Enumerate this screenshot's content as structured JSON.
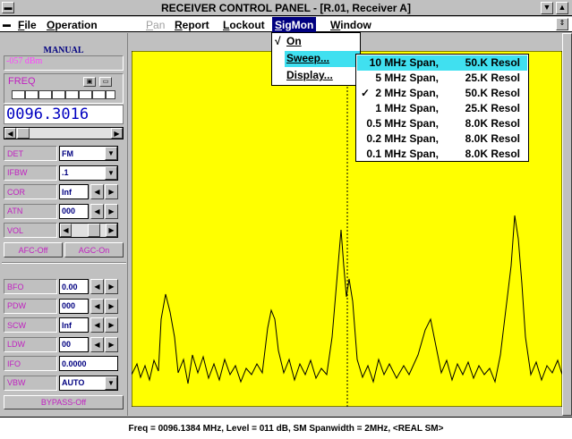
{
  "title_bar": {
    "title": "RECEIVER CONTROL PANEL - [R.01, Receiver A]"
  },
  "menu_bar": {
    "items": [
      "File",
      "Operation",
      "Pan",
      "Report",
      "Lockout",
      "SigMon",
      "Window"
    ]
  },
  "sigmon_menu": {
    "check": "√",
    "items": [
      "On",
      "Sweep...",
      "Display..."
    ]
  },
  "sweep_menu": {
    "check": "✓",
    "items": [
      {
        "span": "10 MHz Span,",
        "resol": "50.K Resol"
      },
      {
        "span": "5 MHz Span,",
        "resol": "25.K Resol"
      },
      {
        "span": "2 MHz Span,",
        "resol": "50.K Resol"
      },
      {
        "span": "1 MHz Span,",
        "resol": "25.K Resol"
      },
      {
        "span": "0.5 MHz Span,",
        "resol": "8.0K Resol"
      },
      {
        "span": "0.2 MHz Span,",
        "resol": "8.0K Resol"
      },
      {
        "span": "0.1 MHz Span,",
        "resol": "8.0K Resol"
      }
    ]
  },
  "left_panel": {
    "mode": "MANUAL",
    "level": "-057 dBm",
    "freq_label": "FREQ",
    "freq": "0096.3016",
    "upper_rows": [
      {
        "label": "DET",
        "value": "FM"
      },
      {
        "label": "IFBW",
        "value": ".1"
      },
      {
        "label": "COR",
        "value": "Inf"
      },
      {
        "label": "ATN",
        "value": "000"
      },
      {
        "label": "VOL"
      }
    ],
    "afc": "AFC-Off",
    "agc": "AGC-On",
    "lower_rows": [
      {
        "label": "BFO",
        "value": "0.00"
      },
      {
        "label": "PDW",
        "value": "000"
      },
      {
        "label": "SCW",
        "value": "Inf"
      },
      {
        "label": "LDW",
        "value": "00"
      },
      {
        "label": "IFO",
        "value": "0.0000"
      },
      {
        "label": "VBW",
        "value": "AUTO"
      }
    ],
    "bypass": "BYPASS-Off"
  },
  "status_bar": {
    "text": "Freq = 0096.1384 MHz, Level = 011 dB, SM Spanwidth = 2MHz, <REAL SM>"
  }
}
